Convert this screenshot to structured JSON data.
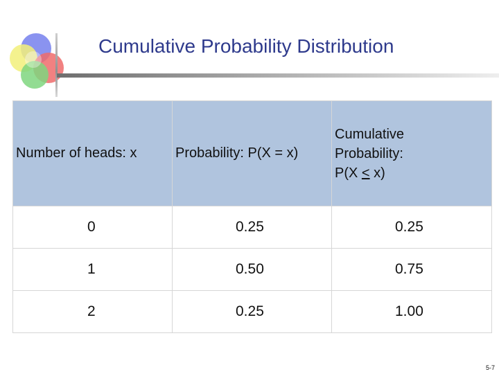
{
  "slide": {
    "title": "Cumulative Probability Distribution",
    "page_number": "5-7"
  },
  "table": {
    "headers": {
      "col1": "Number of heads: x",
      "col2": "Probability: P(X = x)",
      "col3_line1": "Cumulative",
      "col3_line2": "Probability:",
      "col3_line3_pre": "P(X ",
      "col3_line3_sym": "<",
      "col3_line3_post": " x)"
    },
    "rows": [
      {
        "x": "0",
        "p": "0.25",
        "cp": "0.25"
      },
      {
        "x": "1",
        "p": "0.50",
        "cp": "0.75"
      },
      {
        "x": "2",
        "p": "0.25",
        "cp": "1.00"
      }
    ]
  },
  "colors": {
    "title": "#2e3a8c",
    "header_bg": "#b0c4de"
  }
}
